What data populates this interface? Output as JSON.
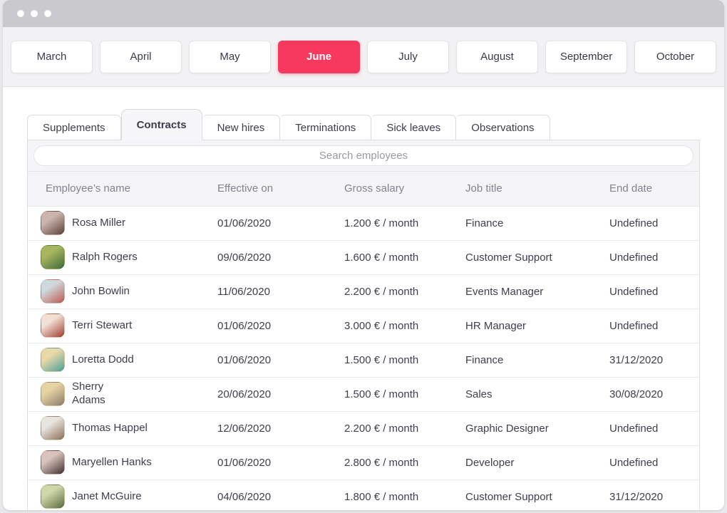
{
  "colors": {
    "accent_pink": "#f8395f",
    "titlebar_gray": "#c9c9ce",
    "panel_gray": "#f5f5f7",
    "page_bg": "#e9e9ec"
  },
  "window": {
    "dot_count": 3
  },
  "months": {
    "items": [
      "March",
      "April",
      "May",
      "June",
      "July",
      "August",
      "September",
      "October"
    ],
    "active": "June"
  },
  "tabs": {
    "items": [
      "Supplements",
      "Contracts",
      "New hires",
      "Terminations",
      "Sick leaves",
      "Observations"
    ],
    "active": "Contracts"
  },
  "search": {
    "placeholder": "Search employees"
  },
  "table": {
    "columns": [
      "Employee’s name",
      "Effective on",
      "Gross salary",
      "Job title",
      "End date"
    ],
    "rows": [
      {
        "name": "Rosa Miller",
        "effective_on": "01/06/2020",
        "gross_salary": "1.200 € / month",
        "job_title": "Finance",
        "end_date": "Undefined",
        "avatar": "rosa-miller-photo",
        "avatar_colors": [
          "#c9b6ae",
          "#5d4037"
        ]
      },
      {
        "name": "Ralph Rogers",
        "effective_on": "09/06/2020",
        "gross_salary": "1.600 € / month",
        "job_title": "Customer Support",
        "end_date": "Undefined",
        "avatar": "ralph-rogers-photo",
        "avatar_colors": [
          "#a8b55f",
          "#3e6b3a"
        ]
      },
      {
        "name": "John Bowlin",
        "effective_on": "11/06/2020",
        "gross_salary": "2.200 € / month",
        "job_title": "Events Manager",
        "end_date": "Undefined",
        "avatar": "john-bowlin-photo",
        "avatar_colors": [
          "#cfd8dc",
          "#c0564f"
        ]
      },
      {
        "name": "Terri Stewart",
        "effective_on": "01/06/2020",
        "gross_salary": "3.000 € / month",
        "job_title": "HR Manager",
        "end_date": "Undefined",
        "avatar": "terri-stewart-photo",
        "avatar_colors": [
          "#f0e0d6",
          "#a33c2f"
        ]
      },
      {
        "name": "Loretta Dodd",
        "effective_on": "01/06/2020",
        "gross_salary": "1.500 € / month",
        "job_title": "Finance",
        "end_date": "31/12/2020",
        "avatar": "loretta-dodd-photo",
        "avatar_colors": [
          "#e8d9a8",
          "#4aa09a"
        ]
      },
      {
        "name": "Sherry\nAdams",
        "effective_on": "20/06/2020",
        "gross_salary": "1.500 € / month",
        "job_title": "Sales",
        "end_date": "30/08/2020",
        "avatar": "sherry-adams-photo",
        "avatar_colors": [
          "#e6d3a3",
          "#8a7d6b"
        ]
      },
      {
        "name": "Thomas Happel",
        "effective_on": "12/06/2020",
        "gross_salary": "2.200 € / month",
        "job_title": "Graphic Designer",
        "end_date": "Undefined",
        "avatar": "thomas-happel-photo",
        "avatar_colors": [
          "#e8e4df",
          "#8a6f54"
        ]
      },
      {
        "name": "Maryellen Hanks",
        "effective_on": "01/06/2020",
        "gross_salary": "2.800 € / month",
        "job_title": "Developer",
        "end_date": "Undefined",
        "avatar": "maryellen-hanks-photo",
        "avatar_colors": [
          "#d9c4bd",
          "#402f33"
        ]
      },
      {
        "name": "Janet McGuire",
        "effective_on": "04/06/2020",
        "gross_salary": "1.800 € / month",
        "job_title": "Customer Support",
        "end_date": "31/12/2020",
        "avatar": "janet-mcguire-photo",
        "avatar_colors": [
          "#cfd6a9",
          "#5a6b3c"
        ]
      }
    ]
  }
}
